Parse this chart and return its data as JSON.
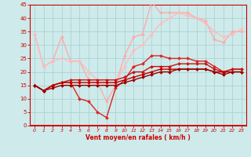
{
  "background_color": "#ceeaea",
  "grid_color": "#aad4d4",
  "xlabel": "Vent moyen/en rafales ( km/h )",
  "xlim": [
    -0.5,
    23.5
  ],
  "ylim": [
    0,
    45
  ],
  "yticks": [
    0,
    5,
    10,
    15,
    20,
    25,
    30,
    35,
    40,
    45
  ],
  "xticks": [
    0,
    1,
    2,
    3,
    4,
    5,
    6,
    7,
    8,
    9,
    10,
    11,
    12,
    13,
    14,
    15,
    16,
    17,
    18,
    19,
    20,
    21,
    22,
    23
  ],
  "lines": [
    {
      "color": "#ffaaaa",
      "lw": 1.0,
      "marker": "D",
      "ms": 2.0,
      "x": [
        0,
        1,
        2,
        3,
        4,
        5,
        6,
        7,
        8,
        9,
        10,
        11,
        12,
        13,
        14,
        15,
        16,
        17,
        18,
        19,
        20,
        21,
        22,
        23
      ],
      "y": [
        34,
        22,
        24,
        33,
        24,
        24,
        17,
        16,
        9,
        15,
        26,
        33,
        34,
        46,
        42,
        42,
        42,
        42,
        40,
        39,
        32,
        31,
        35,
        35
      ]
    },
    {
      "color": "#ffbbbb",
      "lw": 1.0,
      "marker": "D",
      "ms": 2.0,
      "x": [
        0,
        1,
        2,
        3,
        4,
        5,
        6,
        7,
        8,
        9,
        10,
        11,
        12,
        13,
        14,
        15,
        16,
        17,
        18,
        19,
        20,
        21,
        22,
        23
      ],
      "y": [
        34,
        22,
        24,
        25,
        24,
        24,
        20,
        17,
        16,
        16,
        22,
        28,
        30,
        34,
        38,
        40,
        42,
        41,
        40,
        38,
        35,
        33,
        34,
        36
      ]
    },
    {
      "color": "#dd2222",
      "lw": 1.0,
      "marker": "D",
      "ms": 2.0,
      "x": [
        0,
        1,
        2,
        3,
        4,
        5,
        6,
        7,
        8,
        9,
        10,
        11,
        12,
        13,
        14,
        15,
        16,
        17,
        18,
        19,
        20,
        21,
        22,
        23
      ],
      "y": [
        15,
        13,
        15,
        16,
        16,
        10,
        9,
        5,
        3,
        14,
        17,
        22,
        23,
        26,
        26,
        25,
        25,
        25,
        24,
        24,
        22,
        20,
        21,
        21
      ]
    },
    {
      "color": "#cc1111",
      "lw": 1.0,
      "marker": "D",
      "ms": 2.0,
      "x": [
        0,
        1,
        2,
        3,
        4,
        5,
        6,
        7,
        8,
        9,
        10,
        11,
        12,
        13,
        14,
        15,
        16,
        17,
        18,
        19,
        20,
        21,
        22,
        23
      ],
      "y": [
        15,
        13,
        15,
        16,
        17,
        17,
        17,
        17,
        17,
        17,
        18,
        20,
        20,
        22,
        22,
        22,
        23,
        23,
        23,
        23,
        21,
        20,
        21,
        21
      ]
    },
    {
      "color": "#bb0000",
      "lw": 1.0,
      "marker": "D",
      "ms": 2.0,
      "x": [
        0,
        1,
        2,
        3,
        4,
        5,
        6,
        7,
        8,
        9,
        10,
        11,
        12,
        13,
        14,
        15,
        16,
        17,
        18,
        19,
        20,
        21,
        22,
        23
      ],
      "y": [
        15,
        13,
        15,
        16,
        16,
        16,
        16,
        16,
        16,
        16,
        17,
        18,
        19,
        20,
        21,
        21,
        21,
        21,
        21,
        21,
        20,
        20,
        20,
        20
      ]
    },
    {
      "color": "#990000",
      "lw": 1.0,
      "marker": "D",
      "ms": 2.0,
      "x": [
        0,
        1,
        2,
        3,
        4,
        5,
        6,
        7,
        8,
        9,
        10,
        11,
        12,
        13,
        14,
        15,
        16,
        17,
        18,
        19,
        20,
        21,
        22,
        23
      ],
      "y": [
        15,
        13,
        14,
        15,
        15,
        15,
        15,
        15,
        15,
        15,
        16,
        17,
        18,
        19,
        20,
        20,
        21,
        21,
        21,
        21,
        20,
        19,
        20,
        20
      ]
    }
  ]
}
